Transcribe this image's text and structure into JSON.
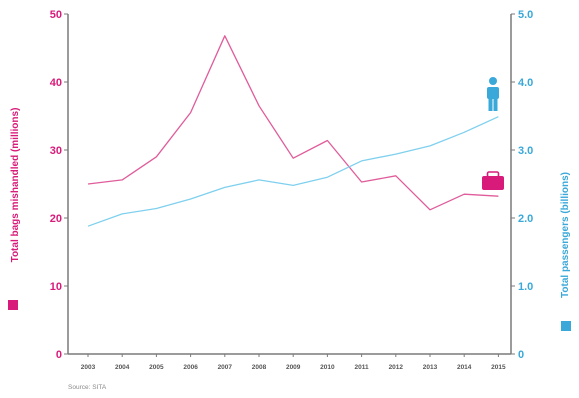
{
  "chart_data": {
    "type": "line",
    "x": [
      "2003",
      "2004",
      "2005",
      "2006",
      "2007",
      "2008",
      "2009",
      "2010",
      "2011",
      "2012",
      "2013",
      "2014",
      "2015"
    ],
    "series": [
      {
        "axis": "left",
        "color": "#e05c9a",
        "values": [
          25.0,
          25.6,
          29.0,
          35.5,
          46.8,
          36.5,
          28.8,
          31.4,
          25.3,
          26.2,
          21.2,
          23.5,
          23.2
        ]
      },
      {
        "axis": "right",
        "color": "#7fd0ee",
        "values": [
          1.88,
          2.06,
          2.14,
          2.28,
          2.45,
          2.56,
          2.48,
          2.6,
          2.84,
          2.94,
          3.06,
          3.26,
          3.49
        ]
      }
    ],
    "yleft": {
      "label": "Total bags mishandled (millions)",
      "lim": [
        0,
        50
      ],
      "ticks": [
        "0",
        "10",
        "20",
        "30",
        "40",
        "50"
      ],
      "color": "#d81b7a"
    },
    "yright": {
      "label": "Total passengers (billions)",
      "lim": [
        0,
        5.0
      ],
      "ticks": [
        "0",
        "1.0",
        "2.0",
        "3.0",
        "4.0",
        "5.0"
      ],
      "color": "#3aa8d8"
    },
    "grid": false,
    "legend": "axis-side square markers",
    "source": "Source: SITA",
    "icons": [
      "suitcase-icon",
      "person-icon"
    ]
  }
}
